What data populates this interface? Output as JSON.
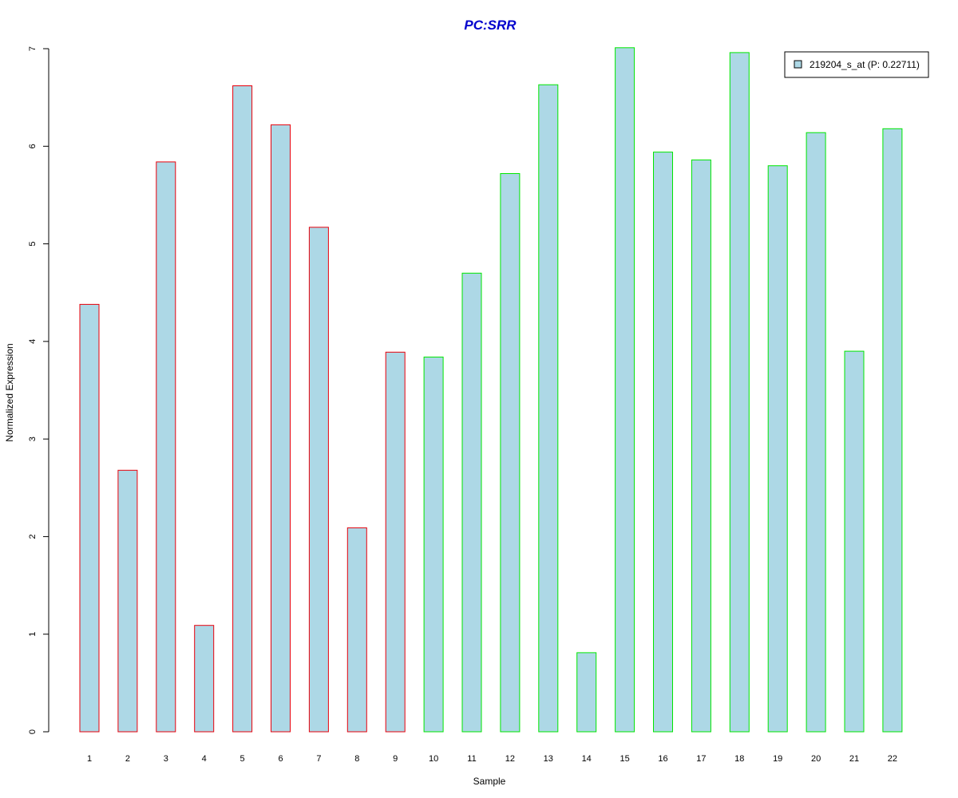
{
  "chart_data": {
    "type": "bar",
    "title": "PC:SRR",
    "xlabel": "Sample",
    "ylabel": "Normalized Expression",
    "categories": [
      "1",
      "2",
      "3",
      "4",
      "5",
      "6",
      "7",
      "8",
      "9",
      "10",
      "11",
      "12",
      "13",
      "14",
      "15",
      "16",
      "17",
      "18",
      "19",
      "20",
      "21",
      "22"
    ],
    "series": [
      {
        "name": "219204_s_at (P: 0.22711)",
        "values": [
          4.38,
          2.68,
          5.84,
          1.09,
          6.62,
          6.22,
          5.17,
          2.09,
          3.89,
          3.84,
          4.7,
          5.72,
          6.63,
          0.81,
          7.01,
          5.94,
          5.86,
          6.96,
          5.8,
          6.14,
          3.9,
          6.18
        ]
      }
    ],
    "group_colors": [
      "#e8000b",
      "#e8000b",
      "#e8000b",
      "#e8000b",
      "#e8000b",
      "#e8000b",
      "#e8000b",
      "#e8000b",
      "#e8000b",
      "#00e600",
      "#00e600",
      "#00e600",
      "#00e600",
      "#00e600",
      "#00e600",
      "#00e600",
      "#00e600",
      "#00e600",
      "#00e600",
      "#00e600",
      "#00e600",
      "#00e600"
    ],
    "ylim": [
      0,
      7
    ],
    "yticks": [
      "0",
      "1",
      "2",
      "3",
      "4",
      "5",
      "6",
      "7"
    ],
    "bar_fill": "#add8e6",
    "title_color": "#0000cd",
    "grid": false,
    "legend_position": "top-right"
  }
}
